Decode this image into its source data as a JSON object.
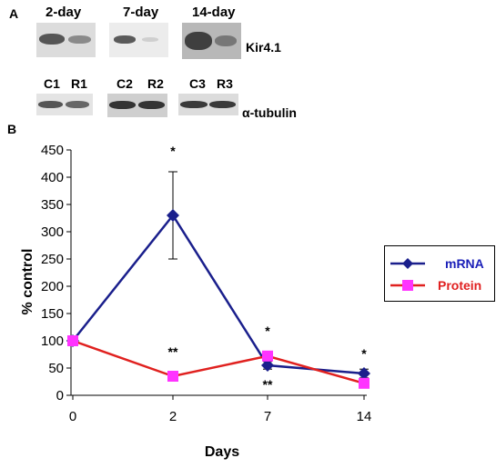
{
  "panel_a": {
    "letter": "A",
    "timepoints": [
      "2-day",
      "7-day",
      "14-day"
    ],
    "kir_label": "Kir4.1",
    "lanes": [
      "C1",
      "R1",
      "C2",
      "R2",
      "C3",
      "R3"
    ],
    "tubulin_label": "α-tubulin"
  },
  "panel_b": {
    "letter": "B"
  },
  "chart_data": {
    "type": "line",
    "x": [
      "0",
      "2",
      "7",
      "14"
    ],
    "xlabel": "Days",
    "ylabel": "% control",
    "ylim": [
      0,
      450
    ],
    "yticks": [
      "0",
      "50",
      "100",
      "150",
      "200",
      "250",
      "300",
      "350",
      "400",
      "450"
    ],
    "series": [
      {
        "name": "mRNA",
        "color": "#1a1f8c",
        "marker": "diamond",
        "values": [
          100,
          330,
          55,
          40
        ],
        "err": [
          0,
          80,
          7,
          8
        ]
      },
      {
        "name": "Protein",
        "color": "#e0211f",
        "marker_color": "#ff33ff",
        "marker": "square",
        "values": [
          100,
          35,
          72,
          22
        ],
        "err": [
          0,
          8,
          6,
          4
        ]
      }
    ],
    "annotations": [
      {
        "text": "*",
        "x": 1,
        "y": 440
      },
      {
        "text": "**",
        "x": 1,
        "y": 72
      },
      {
        "text": "*",
        "x": 2,
        "y": 110
      },
      {
        "text": "**",
        "x": 2,
        "y": 12
      },
      {
        "text": "*",
        "x": 3,
        "y": 68
      }
    ],
    "legend_position": "right"
  },
  "legend_colors": {
    "mrna_text": "#1a1fb8",
    "protein_text": "#e01f1f"
  }
}
